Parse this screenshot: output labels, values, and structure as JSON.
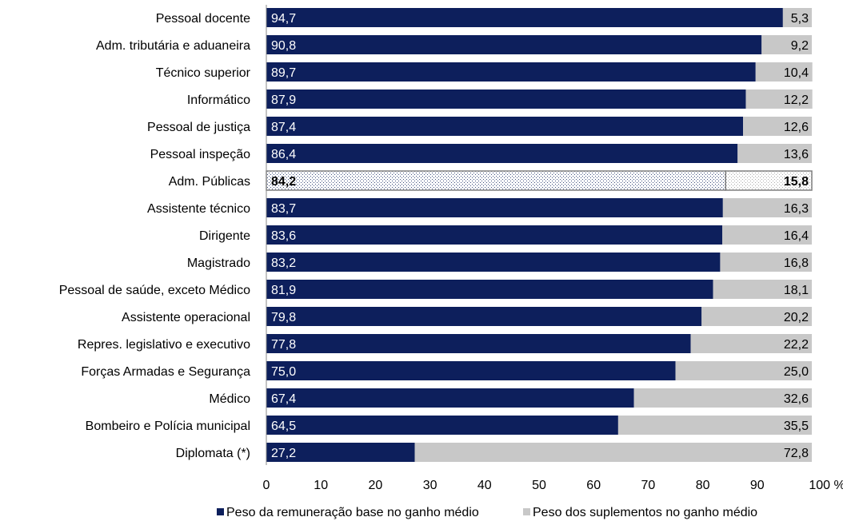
{
  "chart_data": {
    "type": "bar",
    "orientation": "horizontal",
    "stacked": true,
    "categories": [
      "Pessoal docente",
      "Adm. tributária e aduaneira",
      "Técnico superior",
      "Informático",
      "Pessoal de justiça",
      "Pessoal inspeção",
      "Adm. Públicas",
      "Assistente técnico",
      "Dirigente",
      "Magistrado",
      "Pessoal de saúde, exceto Médico",
      "Assistente operacional",
      "Repres. legislativo e executivo",
      "Forças Armadas e Segurança",
      "Médico",
      "Bombeiro e Polícia municipal",
      "Diplomata (*)"
    ],
    "series": [
      {
        "name": "Peso da remuneração base no ganho médio",
        "color": "#0d1f5c",
        "values": [
          94.7,
          90.8,
          89.7,
          87.9,
          87.4,
          86.4,
          84.2,
          83.7,
          83.6,
          83.2,
          81.9,
          79.8,
          77.8,
          75.0,
          67.4,
          64.5,
          27.2
        ],
        "labels": [
          "94,7",
          "90,8",
          "89,7",
          "87,9",
          "87,4",
          "86,4",
          "84,2",
          "83,7",
          "83,6",
          "83,2",
          "81,9",
          "79,8",
          "77,8",
          "75,0",
          "67,4",
          "64,5",
          "27,2"
        ]
      },
      {
        "name": "Peso dos suplementos no ganho médio",
        "color": "#c8c8c8",
        "values": [
          5.3,
          9.2,
          10.4,
          12.2,
          12.6,
          13.6,
          15.8,
          16.3,
          16.4,
          16.8,
          18.1,
          20.2,
          22.2,
          25.0,
          32.6,
          35.5,
          72.8
        ],
        "labels": [
          "5,3",
          "9,2",
          "10,4",
          "12,2",
          "12,6",
          "13,6",
          "15,8",
          "16,3",
          "16,4",
          "16,8",
          "18,1",
          "20,2",
          "22,2",
          "25,0",
          "32,6",
          "35,5",
          "72,8"
        ]
      }
    ],
    "highlight_category": "Adm. Públicas",
    "xlim": [
      0,
      100
    ],
    "xticks": [
      "0",
      "10",
      "20",
      "30",
      "40",
      "50",
      "60",
      "70",
      "80",
      "90",
      "100 %"
    ],
    "grid": false,
    "legend_position": "bottom"
  }
}
